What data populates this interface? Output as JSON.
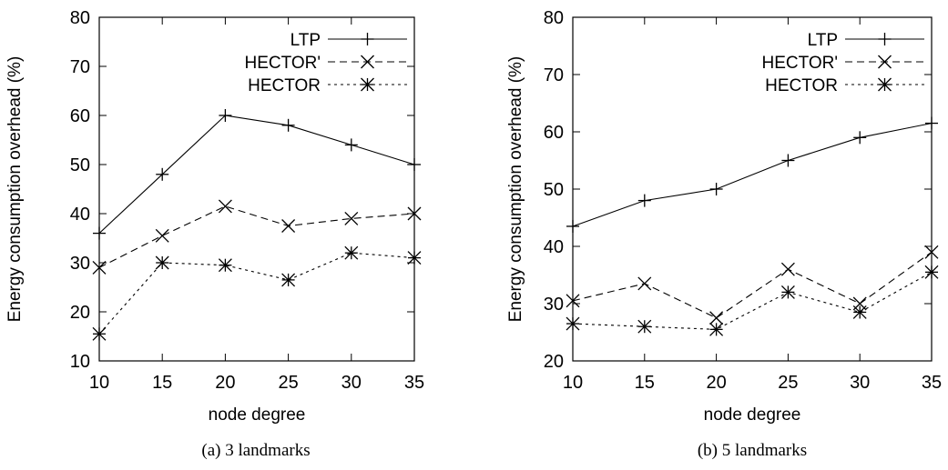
{
  "chart_data": [
    {
      "type": "line",
      "caption": "(a)  3 landmarks",
      "xlabel": "node degree",
      "ylabel": "Energy consumption overhead (%)",
      "x": [
        10,
        15,
        20,
        25,
        30,
        35
      ],
      "xticks": [
        10,
        15,
        20,
        25,
        30,
        35
      ],
      "xlim": [
        10,
        35
      ],
      "yticks": [
        10,
        20,
        30,
        40,
        50,
        60,
        70,
        80
      ],
      "ylim": [
        10,
        80
      ],
      "grid": false,
      "legend_position": "top-right",
      "series": [
        {
          "name": "LTP",
          "marker": "plus",
          "dash": "solid",
          "values": [
            36,
            48,
            60,
            58,
            54,
            50
          ]
        },
        {
          "name": "HECTOR'",
          "marker": "cross",
          "dash": "dashed",
          "values": [
            29,
            35.5,
            41.5,
            37.5,
            39,
            40
          ]
        },
        {
          "name": "HECTOR",
          "marker": "star",
          "dash": "dotted",
          "values": [
            15.5,
            30,
            29.5,
            26.5,
            32,
            31
          ]
        }
      ]
    },
    {
      "type": "line",
      "caption": "(b)  5 landmarks",
      "xlabel": "node degree",
      "ylabel": "Energy consumption overhead (%)",
      "x": [
        10,
        15,
        20,
        25,
        30,
        35
      ],
      "xticks": [
        10,
        15,
        20,
        25,
        30,
        35
      ],
      "xlim": [
        10,
        35
      ],
      "yticks": [
        20,
        30,
        40,
        50,
        60,
        70,
        80
      ],
      "ylim": [
        20,
        80
      ],
      "grid": false,
      "legend_position": "top-right",
      "series": [
        {
          "name": "LTP",
          "marker": "plus",
          "dash": "solid",
          "values": [
            43.5,
            48,
            50,
            55,
            59,
            61.5
          ]
        },
        {
          "name": "HECTOR'",
          "marker": "cross",
          "dash": "dashed",
          "values": [
            30.5,
            33.5,
            27.5,
            36,
            30,
            39
          ]
        },
        {
          "name": "HECTOR",
          "marker": "star",
          "dash": "dotted",
          "values": [
            26.5,
            26,
            25.5,
            32,
            28.5,
            35.5
          ]
        }
      ]
    }
  ]
}
